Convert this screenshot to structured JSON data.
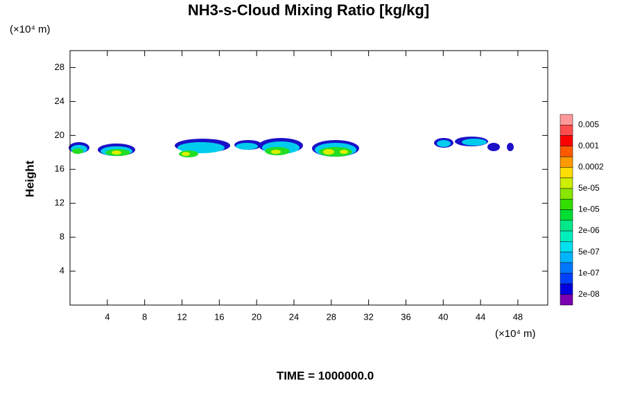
{
  "chart_data": {
    "type": "contour",
    "title": "NH3-s-Cloud Mixing Ratio [kg/kg]",
    "ylabel": "Height",
    "x_unit_label": "(×10⁴ m)",
    "y_unit_label": "(×10⁴ m)",
    "footer": "TIME = 1000000.0",
    "xlim": [
      0,
      51.2
    ],
    "ylim": [
      0,
      30
    ],
    "xticks": [
      4,
      8,
      12,
      16,
      20,
      24,
      28,
      32,
      36,
      40,
      44,
      48
    ],
    "yticks": [
      4,
      8,
      12,
      16,
      20,
      24,
      28
    ],
    "colorbar": {
      "colors": [
        "#ff9999",
        "#ff4d4d",
        "#ff0000",
        "#ff5a00",
        "#ff9900",
        "#ffdd00",
        "#ccee00",
        "#88e600",
        "#33dd00",
        "#00dd33",
        "#00e88a",
        "#00eebb",
        "#00e0ee",
        "#00b4ff",
        "#0077ff",
        "#0040ff",
        "#0000e0",
        "#7a00b0"
      ],
      "levels": [
        0.005,
        0.001,
        0.0002,
        {
          "value": 5e-05,
          "label": "5e-05"
        },
        {
          "value": 1e-05,
          "label": "1e-05"
        },
        {
          "value": 2e-06,
          "label": "2e-06"
        },
        {
          "value": 5e-07,
          "label": "5e-07"
        },
        {
          "value": 1e-07,
          "label": "1e-07"
        },
        {
          "value": 2e-08,
          "label": "2e-08"
        }
      ]
    }
  }
}
